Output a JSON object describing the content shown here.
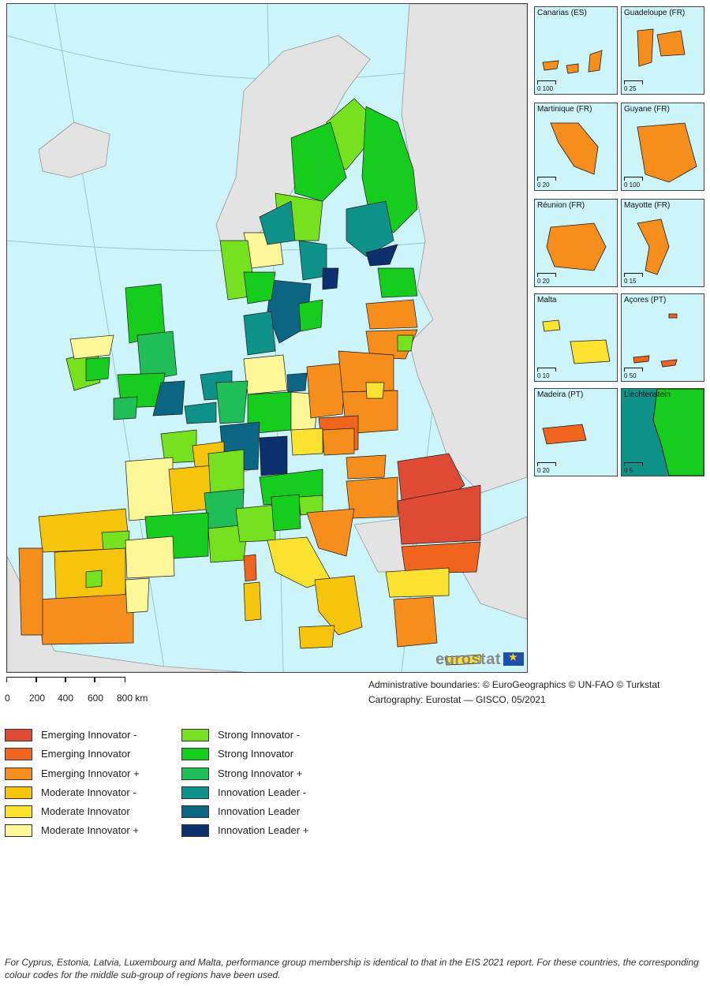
{
  "map": {
    "sea_color": "#cdf4f8",
    "non_eu_color": "#e3e3e3",
    "border_color": "#1a1a1a"
  },
  "categories": {
    "emerging_minus": {
      "label": "Emerging Innovator -",
      "color": "#de4a34"
    },
    "emerging": {
      "label": "Emerging Innovator",
      "color": "#f0641e"
    },
    "emerging_plus": {
      "label": "Emerging Innovator +",
      "color": "#f58e1c"
    },
    "moderate_minus": {
      "label": "Moderate Innovator -",
      "color": "#f6c40d"
    },
    "moderate": {
      "label": "Moderate Innovator",
      "color": "#fbe231"
    },
    "moderate_plus": {
      "label": "Moderate Innovator +",
      "color": "#fdf79a"
    },
    "strong_minus": {
      "label": "Strong Innovator -",
      "color": "#76e21f"
    },
    "strong": {
      "label": "Strong Innovator",
      "color": "#16cc1c"
    },
    "strong_plus": {
      "label": "Strong Innovator +",
      "color": "#1fbe57"
    },
    "leader_minus": {
      "label": "Innovation Leader -",
      "color": "#0f9289"
    },
    "leader": {
      "label": "Innovation Leader",
      "color": "#0c6583"
    },
    "leader_plus": {
      "label": "Innovation Leader +",
      "color": "#0c2f6e"
    }
  },
  "legend": {
    "left": [
      "emerging_minus",
      "emerging",
      "emerging_plus",
      "moderate_minus",
      "moderate",
      "moderate_plus"
    ],
    "right": [
      "strong_minus",
      "strong",
      "strong_plus",
      "leader_minus",
      "leader",
      "leader_plus"
    ]
  },
  "insets": [
    {
      "name": "Canarias (ES)",
      "category": "emerging_plus",
      "scale": "0 100"
    },
    {
      "name": "Guadeloupe (FR)",
      "category": "emerging_plus",
      "scale": "0    25"
    },
    {
      "name": "Martinique (FR)",
      "category": "emerging_plus",
      "scale": "0    20"
    },
    {
      "name": "Guyane (FR)",
      "category": "emerging_plus",
      "scale": "0  100"
    },
    {
      "name": "Réunion (FR)",
      "category": "emerging_plus",
      "scale": "0    20"
    },
    {
      "name": "Mayotte (FR)",
      "category": "emerging_plus",
      "scale": "0     15"
    },
    {
      "name": "Malta",
      "category": "moderate",
      "scale": "0    10"
    },
    {
      "name": "Açores (PT)",
      "category": "emerging",
      "scale": "0   50"
    },
    {
      "name": "Madeira (PT)",
      "category": "emerging",
      "scale": "0  20"
    },
    {
      "name": "Liechtenstein",
      "category": "strong",
      "scale": "0    5"
    }
  ],
  "scalebar": {
    "labels": [
      "0",
      "200",
      "400",
      "600",
      "800 km"
    ]
  },
  "credits": {
    "line1": "Administrative boundaries: © EuroGeographics © UN-FAO © Turkstat",
    "line2": "Cartography: Eurostat — GISCO, 05/2021"
  },
  "logo": {
    "text": "eurostat"
  },
  "footnote": "For Cyprus, Estonia, Latvia, Luxembourg and Malta, performance group membership is identical to that in the EIS 2021 report. For these countries, the corresponding colour codes for the middle sub-group of regions have been used."
}
